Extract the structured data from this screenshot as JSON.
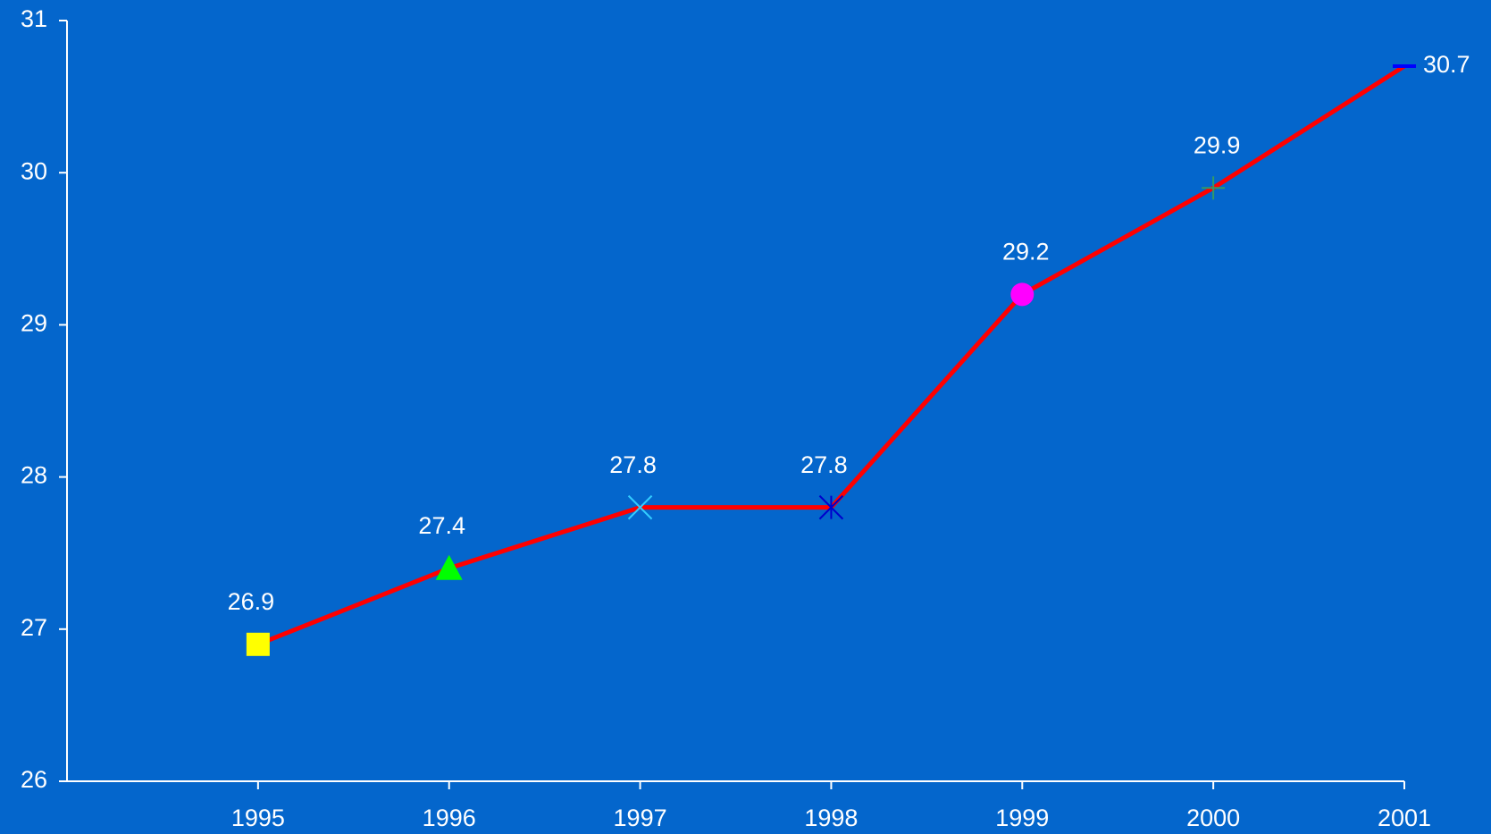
{
  "chart_data": {
    "type": "line",
    "x": [
      1995,
      1996,
      1997,
      1998,
      1999,
      2000,
      2001
    ],
    "series": [
      {
        "values": [
          26.9,
          27.4,
          27.8,
          27.8,
          29.2,
          29.9,
          30.7
        ],
        "color": "#ff0000",
        "markers": [
          "square",
          "triangle",
          "x",
          "star",
          "circle",
          "plus",
          "dash"
        ],
        "marker_colors": [
          "#ffff00",
          "#00ff00",
          "#33ccff",
          "#0000cc",
          "#ff00ff",
          "#339966",
          "#0000ff"
        ]
      }
    ],
    "xlim": [
      1994,
      2001
    ],
    "xticks": [
      1995,
      1996,
      1997,
      1998,
      1999,
      2000,
      2001
    ],
    "ylim": [
      26,
      31
    ],
    "yticks": [
      26,
      27,
      28,
      29,
      30,
      31
    ],
    "background": "#0466cc",
    "axis_color": "#ffffff"
  }
}
